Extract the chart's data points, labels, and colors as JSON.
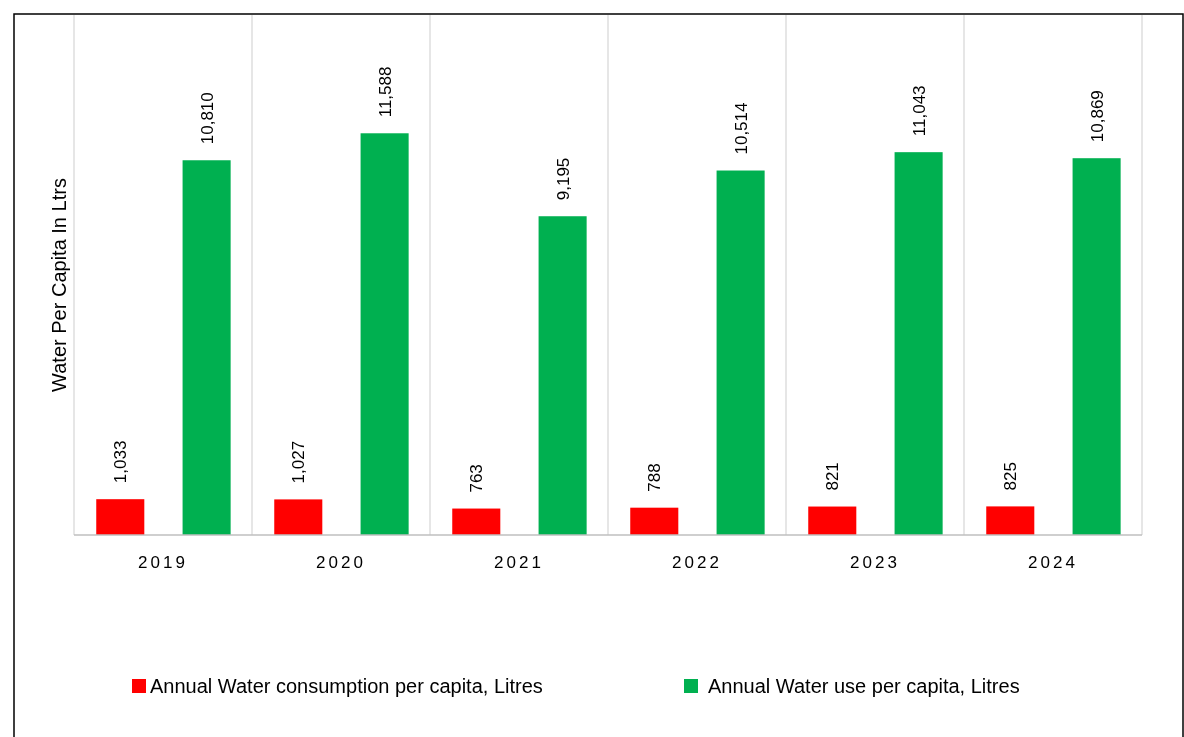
{
  "chart_data": {
    "type": "bar",
    "ylabel": "Water Per Capita In Ltrs",
    "categories": [
      "2019",
      "2020",
      "2021",
      "2022",
      "2023",
      "2024"
    ],
    "series": [
      {
        "name": "Annual Water consumption per capita, Litres",
        "color": "#ff0000",
        "values": [
          1033,
          1027,
          763,
          788,
          821,
          825
        ],
        "value_labels": [
          "1,033",
          "1,027",
          "763",
          "788",
          "821",
          "825"
        ]
      },
      {
        "name": "Annual Water use per capita, Litres",
        "color": "#00b050",
        "values": [
          10810,
          11588,
          9195,
          10514,
          11043,
          10869
        ],
        "value_labels": [
          "10,810",
          "11,588",
          "9,195",
          "10,514",
          "11,043",
          "10,869"
        ]
      }
    ],
    "ylim": [
      0,
      15000
    ],
    "grid": "x",
    "legend": "bottom",
    "tick_labels": "x"
  }
}
